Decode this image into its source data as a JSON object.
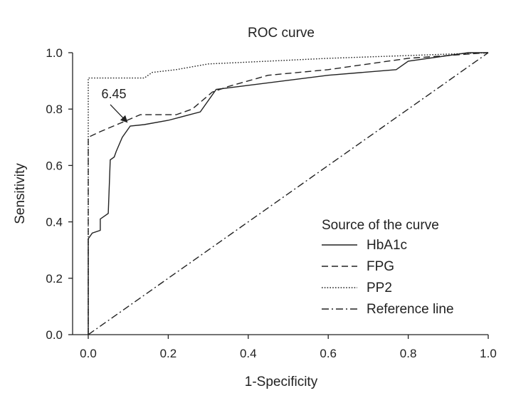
{
  "chart_data": {
    "type": "line",
    "title": "ROC curve",
    "xlabel": "1-Specificity",
    "ylabel": "Sensitivity",
    "xlim": [
      0,
      1
    ],
    "ylim": [
      0,
      1
    ],
    "x_ticks": [
      0.0,
      0.2,
      0.4,
      0.6,
      0.8,
      1.0
    ],
    "y_ticks": [
      0.0,
      0.2,
      0.4,
      0.6,
      0.8,
      1.0
    ],
    "x_tick_labels": [
      "0.0",
      "0.2",
      "0.4",
      "0.6",
      "0.8",
      "1.0"
    ],
    "y_tick_labels": [
      "0.0",
      "0.2",
      "0.4",
      "0.6",
      "0.8",
      "1.0"
    ],
    "legend_title": "Source of the curve",
    "legend_position": "bottom-right",
    "series": [
      {
        "name": "HbA1c",
        "style": "solid",
        "points": [
          [
            0,
            0
          ],
          [
            0,
            0.34
          ],
          [
            0.01,
            0.36
          ],
          [
            0.03,
            0.37
          ],
          [
            0.03,
            0.41
          ],
          [
            0.04,
            0.42
          ],
          [
            0.05,
            0.43
          ],
          [
            0.055,
            0.62
          ],
          [
            0.065,
            0.63
          ],
          [
            0.07,
            0.65
          ],
          [
            0.085,
            0.7
          ],
          [
            0.105,
            0.74
          ],
          [
            0.14,
            0.745
          ],
          [
            0.2,
            0.76
          ],
          [
            0.28,
            0.79
          ],
          [
            0.32,
            0.87
          ],
          [
            0.6,
            0.92
          ],
          [
            0.77,
            0.94
          ],
          [
            0.8,
            0.97
          ],
          [
            0.9,
            0.99
          ],
          [
            0.95,
            1.0
          ],
          [
            1.0,
            1.0
          ]
        ]
      },
      {
        "name": "FPG",
        "style": "dashed",
        "points": [
          [
            0,
            0
          ],
          [
            0,
            0.7
          ],
          [
            0.03,
            0.72
          ],
          [
            0.08,
            0.75
          ],
          [
            0.13,
            0.78
          ],
          [
            0.22,
            0.78
          ],
          [
            0.26,
            0.8
          ],
          [
            0.31,
            0.86
          ],
          [
            0.35,
            0.88
          ],
          [
            0.45,
            0.92
          ],
          [
            0.6,
            0.94
          ],
          [
            0.8,
            0.98
          ],
          [
            1.0,
            1.0
          ]
        ]
      },
      {
        "name": "PP2",
        "style": "dotted",
        "points": [
          [
            0,
            0
          ],
          [
            0,
            0.91
          ],
          [
            0.14,
            0.91
          ],
          [
            0.16,
            0.93
          ],
          [
            0.22,
            0.94
          ],
          [
            0.3,
            0.96
          ],
          [
            0.45,
            0.97
          ],
          [
            0.6,
            0.98
          ],
          [
            0.8,
            0.99
          ],
          [
            1.0,
            1.0
          ]
        ]
      },
      {
        "name": "Reference line",
        "style": "dashdot",
        "points": [
          [
            0,
            0
          ],
          [
            1,
            1
          ]
        ]
      }
    ],
    "annotations": [
      {
        "text": "6.45",
        "x": 0.105,
        "y": 0.74
      }
    ]
  }
}
